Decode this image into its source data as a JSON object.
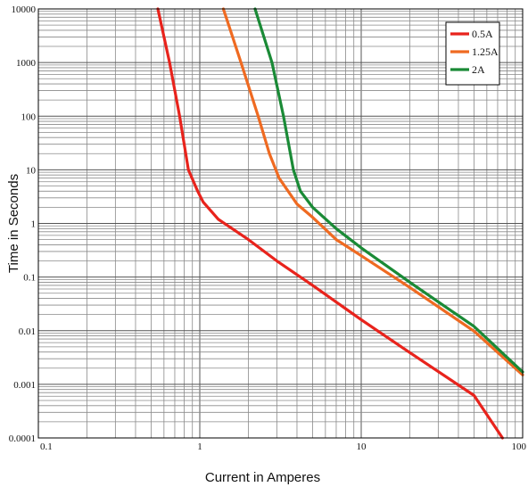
{
  "chart_data": {
    "type": "line",
    "xlabel": "Current in Amperes",
    "ylabel": "Time in Seconds",
    "xscale": "log",
    "yscale": "log",
    "xlim": [
      0.1,
      100
    ],
    "ylim": [
      0.0001,
      10000
    ],
    "grid": true,
    "legend_position": "top-right",
    "x_ticks": [
      {
        "value": 0.1,
        "label": "0.1"
      },
      {
        "value": 1,
        "label": "1"
      },
      {
        "value": 10,
        "label": "10"
      },
      {
        "value": 100,
        "label": "100"
      }
    ],
    "y_ticks": [
      {
        "value": 0.0001,
        "label": "0.0001"
      },
      {
        "value": 0.001,
        "label": "0.001"
      },
      {
        "value": 0.01,
        "label": "0.01"
      },
      {
        "value": 0.1,
        "label": "0.1"
      },
      {
        "value": 1,
        "label": "1"
      },
      {
        "value": 10,
        "label": "10"
      },
      {
        "value": 100,
        "label": "100"
      },
      {
        "value": 1000,
        "label": "1000"
      },
      {
        "value": 10000,
        "label": "10000"
      }
    ],
    "series": [
      {
        "name": "0.5A",
        "color": "#e8231c",
        "points": [
          [
            0.55,
            10000
          ],
          [
            0.65,
            1000
          ],
          [
            0.75,
            100
          ],
          [
            0.85,
            10
          ],
          [
            0.97,
            4
          ],
          [
            1.05,
            2.5
          ],
          [
            1.3,
            1.2
          ],
          [
            2,
            0.5
          ],
          [
            3,
            0.2
          ],
          [
            5,
            0.07
          ],
          [
            10,
            0.016
          ],
          [
            20,
            0.0039
          ],
          [
            50,
            0.00062
          ],
          [
            75,
            0.0001
          ]
        ]
      },
      {
        "name": "1.25A",
        "color": "#ef6a21",
        "points": [
          [
            1.4,
            10000
          ],
          [
            1.8,
            1000
          ],
          [
            2.3,
            100
          ],
          [
            2.7,
            20
          ],
          [
            3.1,
            7
          ],
          [
            4,
            2.3
          ],
          [
            5,
            1.3
          ],
          [
            7,
            0.5
          ],
          [
            10,
            0.25
          ],
          [
            20,
            0.064
          ],
          [
            50,
            0.0098
          ],
          [
            100,
            0.0015
          ]
        ]
      },
      {
        "name": "2A",
        "color": "#1a8a36",
        "points": [
          [
            2.2,
            10000
          ],
          [
            2.8,
            1000
          ],
          [
            3.3,
            100
          ],
          [
            3.8,
            10
          ],
          [
            4.2,
            4
          ],
          [
            5,
            2
          ],
          [
            7,
            0.8
          ],
          [
            10,
            0.35
          ],
          [
            20,
            0.08
          ],
          [
            50,
            0.012
          ],
          [
            100,
            0.0017
          ]
        ]
      }
    ]
  }
}
